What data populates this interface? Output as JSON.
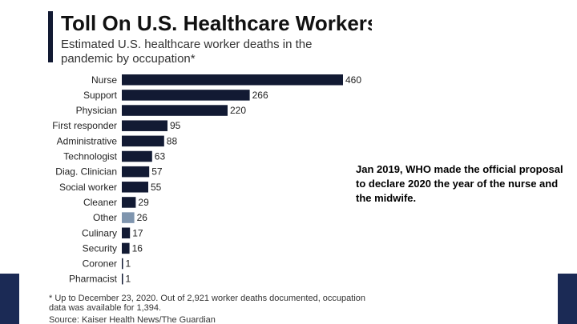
{
  "colors": {
    "bar": "#121a33",
    "bar_highlight": "#7f95ae",
    "side_block": "#1b2a55"
  },
  "chart_data": {
    "type": "bar",
    "orientation": "horizontal",
    "title": "Toll On U.S. Healthcare Workers",
    "subtitle": "Estimated U.S. healthcare worker deaths in the pandemic by occupation*",
    "categories": [
      "Nurse",
      "Support",
      "Physician",
      "First responder",
      "Administrative",
      "Technologist",
      "Diag. Clinician",
      "Social worker",
      "Cleaner",
      "Other",
      "Culinary",
      "Security",
      "Coroner",
      "Pharmacist"
    ],
    "values": [
      460,
      266,
      220,
      95,
      88,
      63,
      57,
      55,
      29,
      26,
      17,
      16,
      1,
      1
    ],
    "highlight_category": "Other",
    "xlim": [
      0,
      460
    ],
    "grid": false,
    "footnote": "* Up to December 23, 2020. Out of 2,921 worker deaths documented, occupation data was available for 1,394.",
    "source": "Source: Kaiser Health News/The Guardian"
  },
  "annotation": {
    "text": "Jan 2019, WHO  made the official proposal to declare 2020 the year of the nurse and the midwife."
  }
}
